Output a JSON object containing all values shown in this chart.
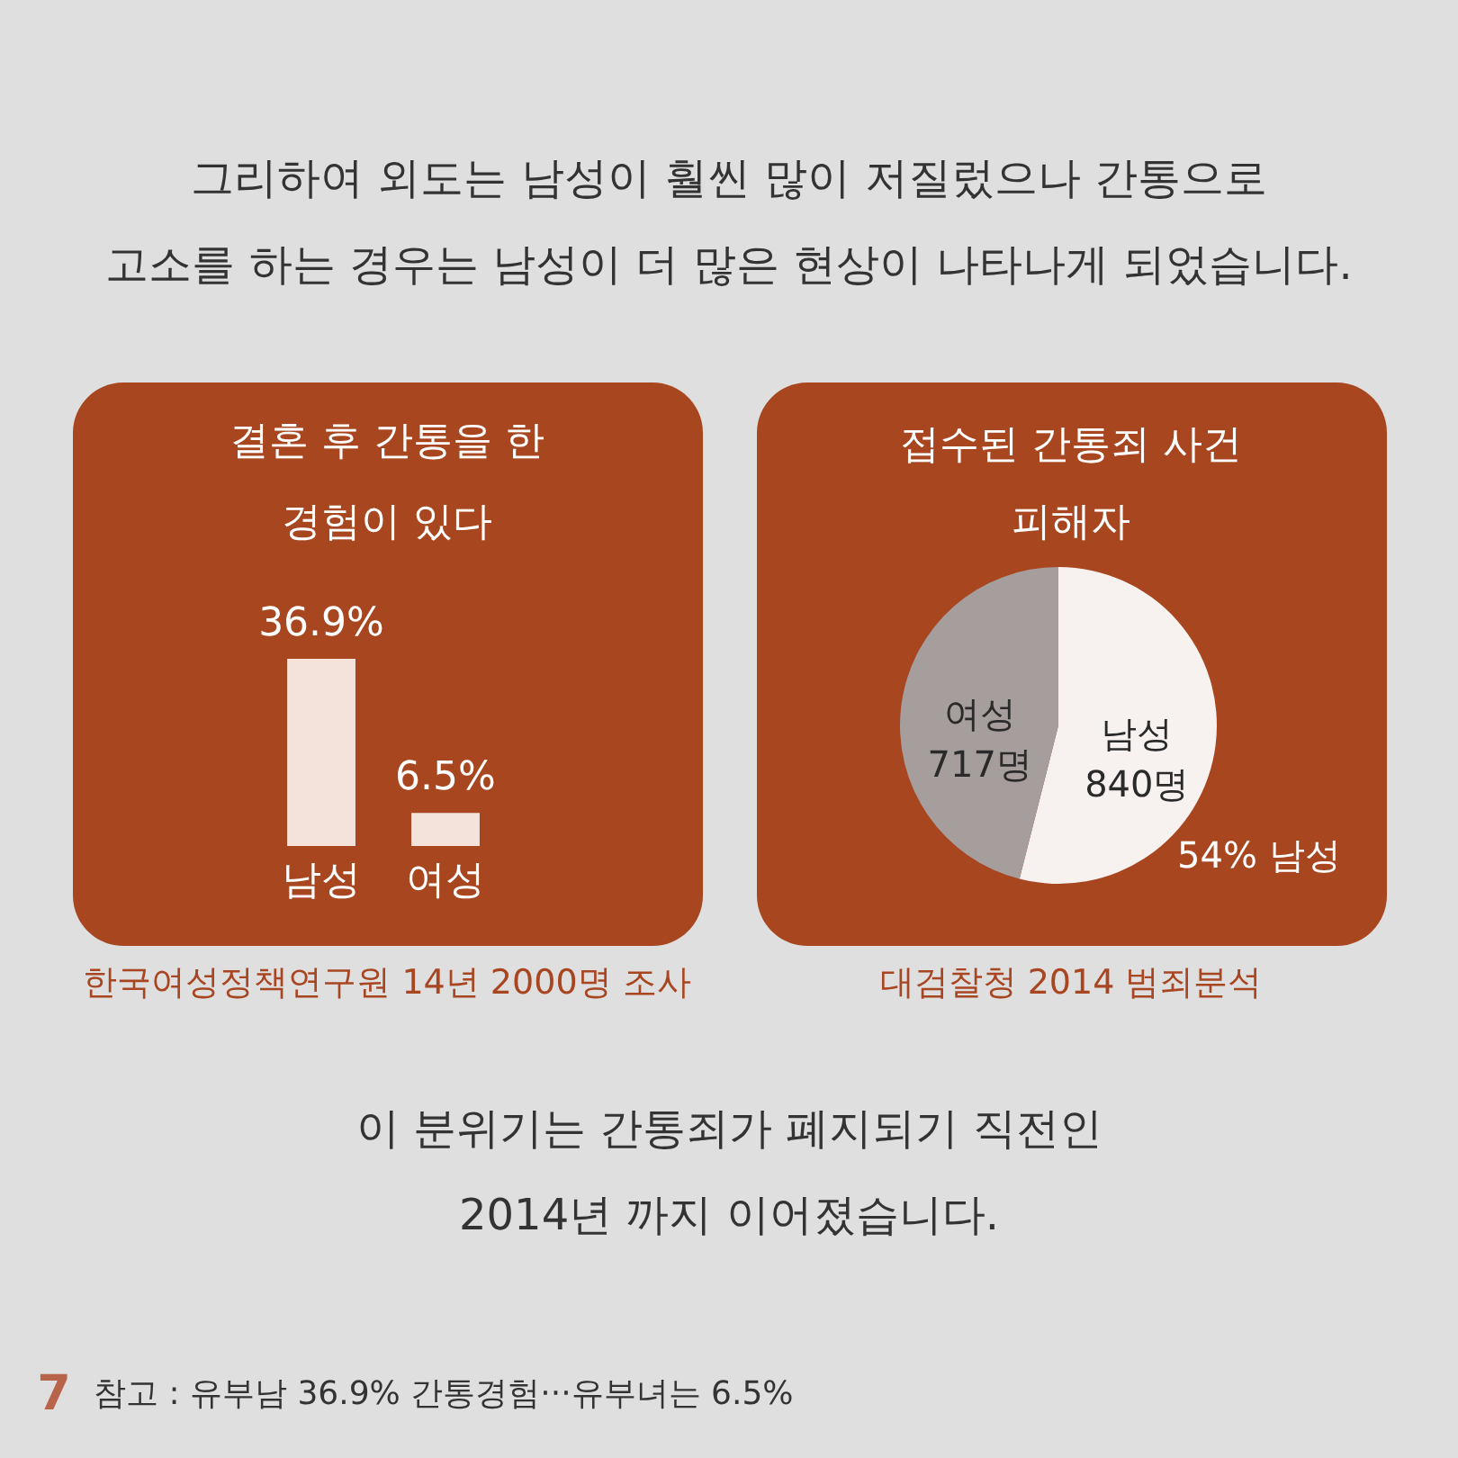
{
  "chart_data": [
    {
      "type": "other",
      "title": "그리하여 외도는 남성이 훨씬 많이 저질렀으나 간통으로\n고소를 하는 경우는 남성이 더 많은 현상이 나타나게 되었습니다."
    },
    {
      "type": "bar",
      "title": "결혼 후 간통을 한\n경험이 있다",
      "categories": [
        "남성",
        "여성"
      ],
      "values": [
        36.9,
        6.5
      ],
      "value_labels": [
        "36.9%",
        "6.5%"
      ],
      "color": "#f3e3db",
      "annotations": [
        "한국여성정책연구원 14년 2000명 조사"
      ]
    },
    {
      "type": "pie",
      "title": "접수된 간통죄 사건\n피해자",
      "categories": [
        "남성",
        "여성"
      ],
      "values": [
        840,
        717
      ],
      "value_labels": [
        "840명",
        "717명"
      ],
      "colors": [
        "#f7f2f0",
        "#a69e9c"
      ],
      "annotations": [
        "54% 남성",
        "대검찰청 2014 범죄분석"
      ]
    },
    {
      "type": "other",
      "annotations": [
        "이 분위기는 간통죄가 폐지되기 직전인\n2014년 까지 이어졌습니다.",
        "7",
        "참고 : 유부남 36.9% 간통경험···유부녀는 6.5%"
      ]
    }
  ]
}
